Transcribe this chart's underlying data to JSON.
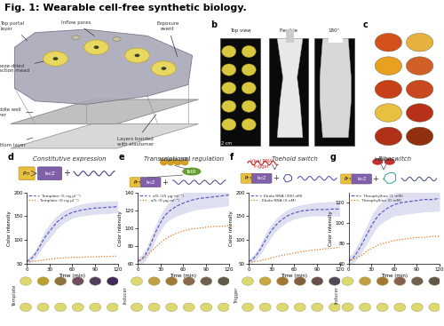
{
  "title": "Fig. 1: Wearable cell-free synthetic biology.",
  "title_fontsize": 8,
  "title_fontweight": "bold",
  "background_color": "#ffffff",
  "panel_d_title": "Constitutive expression",
  "panel_e_title": "Transcriptional regulation",
  "panel_f_title": "Toehold switch",
  "panel_g_title": "Riboswitch",
  "panel_d": {
    "line1_label": "+ Template (5 ng μl⁻¹)",
    "line2_label": "- Template (0 ng μl⁻¹)",
    "line1_color": "#6060c0",
    "line2_color": "#e07820",
    "ylim": [
      50,
      200
    ],
    "yticks": [
      50,
      100,
      150,
      200
    ],
    "ylabel": "Color intensity",
    "line1_data_x": [
      0,
      5,
      10,
      15,
      20,
      25,
      30,
      35,
      40,
      50,
      60,
      70,
      80,
      90,
      100,
      110,
      120
    ],
    "line1_data_y": [
      55,
      60,
      68,
      80,
      95,
      108,
      118,
      128,
      138,
      150,
      158,
      162,
      165,
      167,
      168,
      169,
      170
    ],
    "line2_data_x": [
      0,
      5,
      10,
      15,
      20,
      25,
      30,
      35,
      40,
      50,
      60,
      70,
      80,
      90,
      100,
      110,
      120
    ],
    "line2_data_y": [
      55,
      55,
      56,
      57,
      58,
      59,
      60,
      61,
      62,
      63,
      64,
      64,
      65,
      65,
      66,
      66,
      67
    ],
    "shade1_upper": [
      60,
      67,
      76,
      90,
      108,
      122,
      133,
      143,
      152,
      163,
      170,
      175,
      178,
      180,
      181,
      182,
      182
    ],
    "shade1_lower": [
      50,
      53,
      60,
      70,
      82,
      94,
      103,
      113,
      124,
      137,
      146,
      150,
      152,
      154,
      155,
      156,
      158
    ]
  },
  "panel_e": {
    "line1_label": "+ aTc (25 μg ml⁻¹)",
    "line2_label": "- aTc (0 μg ml⁻¹)",
    "line1_color": "#6060c0",
    "line2_color": "#e07820",
    "ylim": [
      60,
      140
    ],
    "yticks": [
      60,
      80,
      100,
      120,
      140
    ],
    "ylabel": "Color intensity",
    "line1_data_x": [
      0,
      5,
      10,
      15,
      20,
      25,
      30,
      35,
      40,
      50,
      60,
      70,
      80,
      90,
      100,
      110,
      120
    ],
    "line1_data_y": [
      63,
      65,
      70,
      78,
      88,
      98,
      106,
      113,
      118,
      124,
      128,
      131,
      133,
      134,
      135,
      136,
      137
    ],
    "line2_data_x": [
      0,
      5,
      10,
      15,
      20,
      25,
      30,
      35,
      40,
      50,
      60,
      70,
      80,
      90,
      100,
      110,
      120
    ],
    "line2_data_y": [
      63,
      65,
      68,
      72,
      76,
      80,
      84,
      87,
      90,
      94,
      97,
      99,
      100,
      101,
      102,
      102,
      103
    ],
    "shade1_upper": [
      68,
      70,
      76,
      85,
      96,
      106,
      115,
      122,
      128,
      135,
      140,
      143,
      145,
      147,
      148,
      149,
      150
    ],
    "shade1_lower": [
      58,
      60,
      64,
      71,
      80,
      90,
      97,
      104,
      108,
      113,
      116,
      119,
      121,
      122,
      123,
      124,
      125
    ]
  },
  "panel_f": {
    "line1_label": "+ Ebola RNA (300 nM)",
    "line2_label": "- Ebola RNA (0 nM)",
    "line1_color": "#6060c0",
    "line2_color": "#e07820",
    "ylim": [
      50,
      200
    ],
    "yticks": [
      50,
      100,
      150,
      200
    ],
    "ylabel": "Color intensity",
    "line1_data_x": [
      0,
      5,
      10,
      15,
      20,
      25,
      30,
      35,
      40,
      50,
      60,
      70,
      80,
      90,
      100,
      110,
      120
    ],
    "line1_data_y": [
      55,
      60,
      68,
      80,
      94,
      108,
      120,
      130,
      138,
      150,
      157,
      161,
      163,
      164,
      164,
      165,
      165
    ],
    "line2_data_x": [
      0,
      5,
      10,
      15,
      20,
      25,
      30,
      35,
      40,
      50,
      60,
      70,
      80,
      90,
      100,
      110,
      120
    ],
    "line2_data_y": [
      55,
      55,
      56,
      57,
      59,
      61,
      63,
      65,
      67,
      70,
      73,
      76,
      78,
      80,
      82,
      83,
      85
    ],
    "shade1_upper": [
      60,
      67,
      76,
      90,
      107,
      122,
      133,
      143,
      151,
      163,
      170,
      174,
      177,
      179,
      180,
      181,
      181
    ],
    "shade1_lower": [
      50,
      53,
      60,
      70,
      81,
      94,
      107,
      117,
      125,
      137,
      144,
      148,
      150,
      151,
      151,
      151,
      150
    ]
  },
  "panel_g": {
    "line1_label": "+ Theophylline (1 mM)",
    "line2_label": "- Theophylline (0 mM)",
    "line1_color": "#6060c0",
    "line2_color": "#e07820",
    "ylim": [
      60,
      130
    ],
    "yticks": [
      60,
      80,
      100,
      120
    ],
    "ylabel": "Color intensity",
    "line1_data_x": [
      0,
      5,
      10,
      15,
      20,
      25,
      30,
      35,
      40,
      50,
      60,
      70,
      80,
      90,
      100,
      110,
      120
    ],
    "line1_data_y": [
      63,
      65,
      70,
      76,
      83,
      90,
      97,
      103,
      108,
      114,
      118,
      120,
      121,
      122,
      123,
      123,
      124
    ],
    "line2_data_x": [
      0,
      5,
      10,
      15,
      20,
      25,
      30,
      35,
      40,
      50,
      60,
      70,
      80,
      90,
      100,
      110,
      120
    ],
    "line2_data_y": [
      63,
      64,
      66,
      68,
      70,
      73,
      75,
      77,
      79,
      81,
      83,
      84,
      85,
      86,
      86,
      87,
      87
    ],
    "shade1_upper": [
      68,
      70,
      76,
      83,
      91,
      99,
      107,
      113,
      118,
      125,
      129,
      132,
      133,
      134,
      135,
      135,
      136
    ],
    "shade1_lower": [
      58,
      60,
      64,
      69,
      75,
      81,
      87,
      93,
      98,
      103,
      107,
      108,
      109,
      110,
      111,
      111,
      112
    ]
  },
  "spot_colors_top_d": [
    "#ddd870",
    "#b8a030",
    "#907040",
    "#705060",
    "#504060",
    "#402858"
  ],
  "spot_colors_bot_d": [
    "#ddd870",
    "#ddd870",
    "#ddd870",
    "#ddd870",
    "#ddd870",
    "#ddd870"
  ],
  "spot_colors_top_e": [
    "#ddd870",
    "#c0a040",
    "#a07838",
    "#886850",
    "#706050",
    "#605848"
  ],
  "spot_colors_bot_e": [
    "#ddd870",
    "#ddd870",
    "#ddd870",
    "#ddd870",
    "#ddd870",
    "#ddd870"
  ],
  "spot_colors_top_f": [
    "#ddd870",
    "#c8a840",
    "#a07830",
    "#806040",
    "#685050",
    "#504858"
  ],
  "spot_colors_bot_f": [
    "#ddd870",
    "#ddd870",
    "#ddd870",
    "#ddd870",
    "#ddd870",
    "#ddd870"
  ],
  "spot_colors_top_g": [
    "#ddd870",
    "#c0a040",
    "#a07830",
    "#886050",
    "#706050",
    "#605848"
  ],
  "spot_colors_bot_g": [
    "#ddd870",
    "#ddd870",
    "#ddd870",
    "#ddd870",
    "#ddd870",
    "#ddd870"
  ],
  "xlabel": "Time (min)",
  "xticks": [
    0,
    30,
    60,
    90,
    120
  ]
}
